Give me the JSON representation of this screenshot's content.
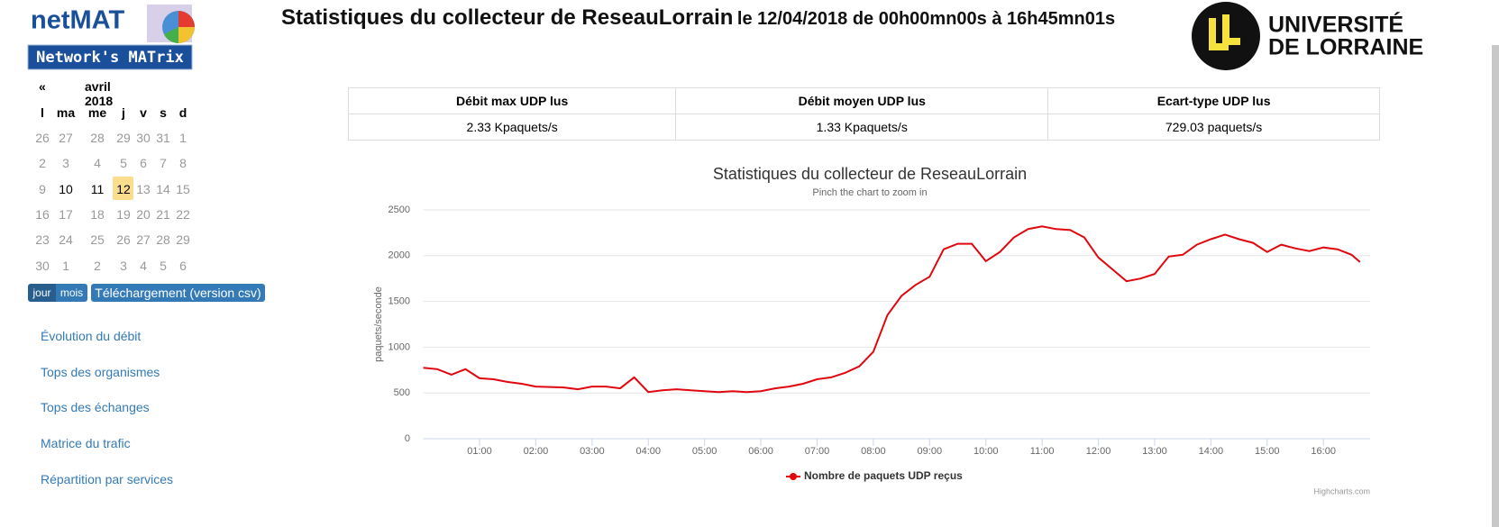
{
  "header": {
    "logo_top": "netMAT",
    "logo_bottom": "Network's MATrix",
    "title": "Statistiques du collecteur de ReseauLorrain",
    "title_suffix": "le 12/04/2018 de 00h00mn00s à 16h45mn01s",
    "university_line1": "UNIVERSITÉ",
    "university_line2": "DE LORRAINE"
  },
  "calendar": {
    "prev": "«",
    "month": "avril 2018",
    "weekdays": [
      "l",
      "ma",
      "me",
      "j",
      "v",
      "s",
      "d"
    ],
    "weeks": [
      [
        "26",
        "27",
        "28",
        "29",
        "30",
        "31",
        "1"
      ],
      [
        "2",
        "3",
        "4",
        "5",
        "6",
        "7",
        "8"
      ],
      [
        "9",
        "10",
        "11",
        "12",
        "13",
        "14",
        "15"
      ],
      [
        "16",
        "17",
        "18",
        "19",
        "20",
        "21",
        "22"
      ],
      [
        "23",
        "24",
        "25",
        "26",
        "27",
        "28",
        "29"
      ],
      [
        "30",
        "1",
        "2",
        "3",
        "4",
        "5",
        "6"
      ]
    ]
  },
  "buttons": {
    "day": "jour",
    "month": "mois",
    "download": "Téléchargement (version csv)"
  },
  "nav": [
    "Évolution du débit",
    "Tops des organismes",
    "Tops des échanges",
    "Matrice du trafic",
    "Répartition par services"
  ],
  "stats": {
    "headers": [
      "Débit max UDP lus",
      "Débit moyen UDP lus",
      "Ecart-type UDP lus"
    ],
    "values": [
      "2.33 Kpaquets/s",
      "1.33 Kpaquets/s",
      "729.03 paquets/s"
    ]
  },
  "chart_data": {
    "type": "line",
    "title": "Statistiques du collecteur de ReseauLorrain",
    "subtitle": "Pinch the chart to zoom in",
    "y_label": "paquets/seconde",
    "credits": "Highcharts.com",
    "x": [
      0,
      0.25,
      0.5,
      0.75,
      1,
      1.25,
      1.5,
      1.75,
      2,
      2.25,
      2.5,
      2.75,
      3,
      3.25,
      3.5,
      3.75,
      4,
      4.25,
      4.5,
      4.75,
      5,
      5.25,
      5.5,
      5.75,
      6,
      6.25,
      6.5,
      6.75,
      7,
      7.25,
      7.5,
      7.75,
      8,
      8.25,
      8.5,
      8.75,
      9,
      9.25,
      9.5,
      9.75,
      10,
      10.25,
      10.5,
      10.75,
      11,
      11.25,
      11.5,
      11.75,
      12,
      12.25,
      12.5,
      12.75,
      13,
      13.25,
      13.5,
      13.75,
      14,
      14.25,
      14.5,
      14.75,
      15,
      15.25,
      15.5,
      15.75,
      16,
      16.25,
      16.5,
      16.65
    ],
    "series": [
      {
        "name": "Nombre de paquets UDP reçus",
        "color": "#e0070f",
        "values": [
          775,
          760,
          700,
          760,
          660,
          650,
          620,
          600,
          570,
          565,
          560,
          540,
          570,
          570,
          550,
          670,
          510,
          530,
          540,
          530,
          520,
          510,
          520,
          510,
          520,
          550,
          570,
          600,
          650,
          670,
          720,
          790,
          950,
          1350,
          1560,
          1680,
          1770,
          2070,
          2130,
          2130,
          1940,
          2040,
          2200,
          2290,
          2320,
          2290,
          2280,
          2200,
          1980,
          1850,
          1720,
          1750,
          1800,
          1990,
          2010,
          2120,
          2180,
          2230,
          2180,
          2140,
          2040,
          2120,
          2080,
          2050,
          2090,
          2070,
          2010,
          1930
        ]
      }
    ],
    "xlim": [
      0,
      16.83
    ],
    "ylim": [
      0,
      2500
    ],
    "yticks": [
      0,
      500,
      1000,
      1500,
      2000,
      2500
    ],
    "grid": true,
    "xticks": [
      {
        "value": 1,
        "label": "01:00"
      },
      {
        "value": 2,
        "label": "02:00"
      },
      {
        "value": 3,
        "label": "03:00"
      },
      {
        "value": 4,
        "label": "04:00"
      },
      {
        "value": 5,
        "label": "05:00"
      },
      {
        "value": 6,
        "label": "06:00"
      },
      {
        "value": 7,
        "label": "07:00"
      },
      {
        "value": 8,
        "label": "08:00"
      },
      {
        "value": 9,
        "label": "09:00"
      },
      {
        "value": 10,
        "label": "10:00"
      },
      {
        "value": 11,
        "label": "11:00"
      },
      {
        "value": 12,
        "label": "12:00"
      },
      {
        "value": 13,
        "label": "13:00"
      },
      {
        "value": 14,
        "label": "14:00"
      },
      {
        "value": 15,
        "label": "15:00"
      },
      {
        "value": 16,
        "label": "16:00"
      }
    ]
  }
}
